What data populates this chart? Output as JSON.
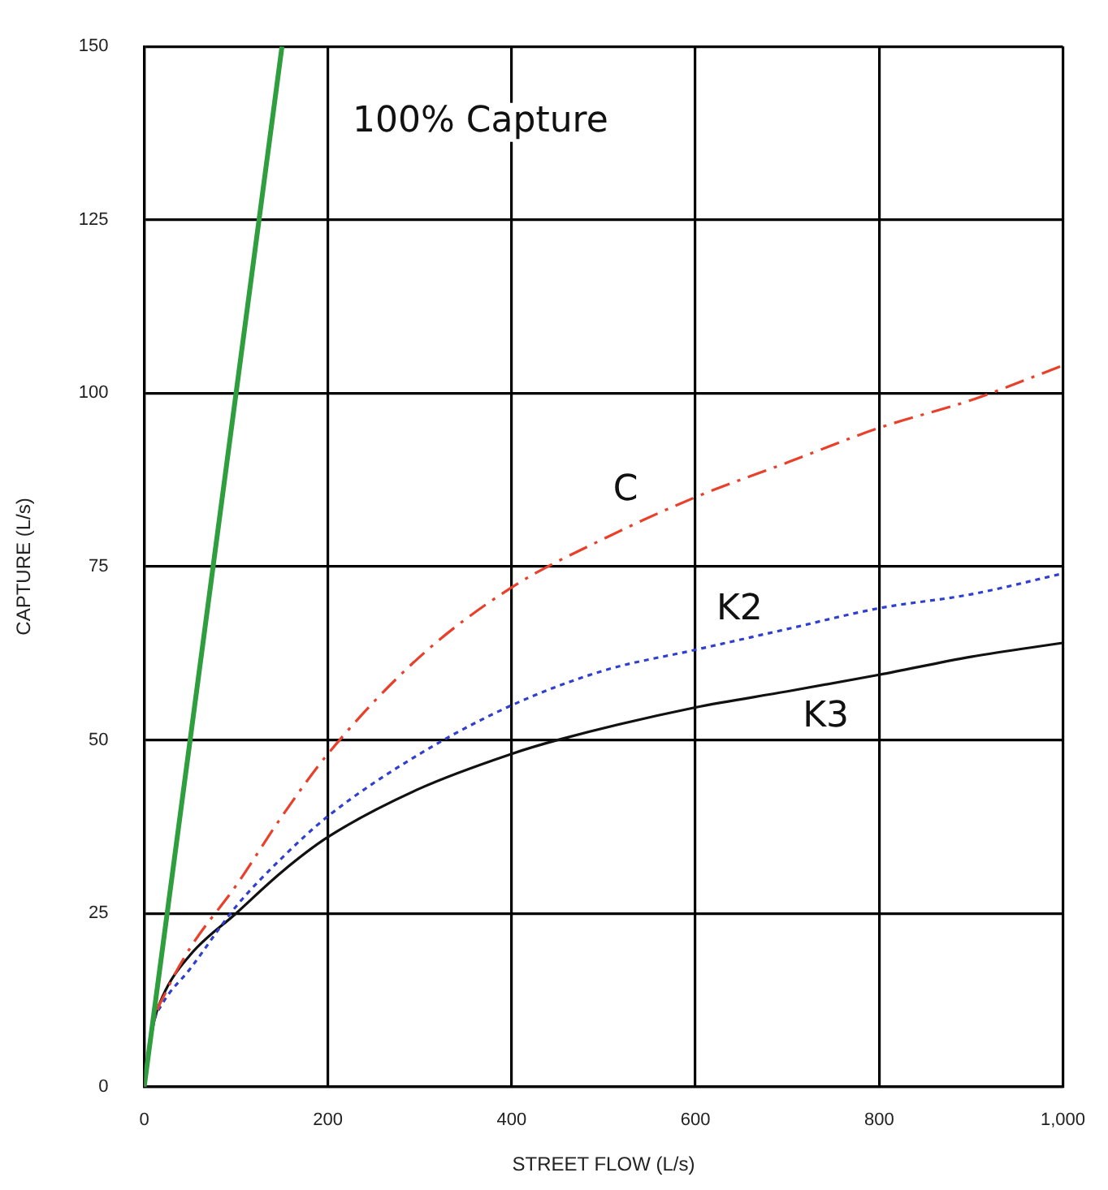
{
  "chart_data": {
    "type": "line",
    "xlabel": "STREET FLOW (L/s)",
    "ylabel": "CAPTURE (L/s)",
    "xlim": [
      0,
      1000
    ],
    "xticks": [
      0,
      200,
      400,
      600,
      800,
      {
        "value": 1000,
        "label": "1,000"
      }
    ],
    "ylim": [
      0,
      150
    ],
    "yticks": [
      0,
      25,
      50,
      75,
      100,
      125,
      150
    ],
    "grid": true,
    "legend": false,
    "marker": "none",
    "series": [
      {
        "name": "100% Capture",
        "color": "#2e9e3e",
        "line_style": "solid",
        "x": [
          0,
          150
        ],
        "values": [
          0,
          150
        ]
      },
      {
        "name": "C",
        "color": "#e8402a",
        "line_style": "dashed",
        "x": [
          0,
          10,
          25,
          50,
          100,
          150,
          200,
          300,
          400,
          500,
          600,
          700,
          800,
          900,
          1000
        ],
        "values": [
          0,
          9,
          14,
          20,
          29,
          39,
          48,
          62,
          72,
          79,
          85,
          90,
          95,
          99,
          104
        ]
      },
      {
        "name": "K2",
        "color": "#2f3fd0",
        "line_style": "dotted",
        "x": [
          0,
          10,
          20,
          50,
          100,
          150,
          200,
          300,
          400,
          500,
          600,
          700,
          800,
          900,
          1000
        ],
        "values": [
          0,
          9,
          12,
          17,
          26,
          33,
          39,
          48,
          55,
          60,
          63,
          66,
          69,
          71,
          74
        ]
      },
      {
        "name": "K3",
        "color": "#111111",
        "line_style": "solid",
        "x": [
          0,
          10,
          20,
          50,
          100,
          150,
          200,
          300,
          400,
          450,
          600,
          700,
          800,
          900,
          1000
        ],
        "values": [
          0,
          9,
          13,
          19,
          25,
          31,
          36,
          43,
          48,
          50,
          54.7,
          57,
          59.4,
          62,
          64
        ]
      }
    ]
  }
}
